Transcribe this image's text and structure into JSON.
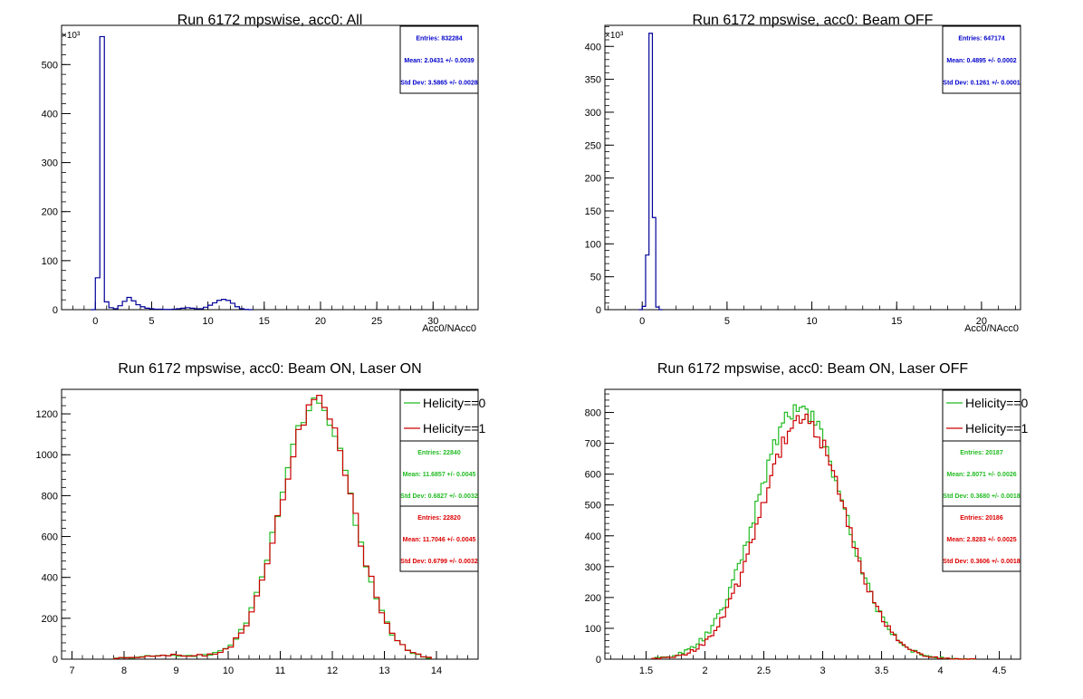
{
  "canvas": {
    "background": "#ffffff"
  },
  "chart_data": [
    {
      "type": "bar",
      "title": "Run 6172 mpswise, acc0: All",
      "xlabel": "Acc0/NAcc0",
      "ylabel": "",
      "multiplier": "×10³",
      "xlim": [
        -3,
        34
      ],
      "ylim": [
        0,
        580
      ],
      "x_ticks": [
        0,
        5,
        10,
        15,
        20,
        25,
        30
      ],
      "y_ticks": [
        0,
        100,
        200,
        300,
        400,
        500
      ],
      "bin_width": 0.4,
      "series": [
        {
          "color": "#000099",
          "bins": [
            [
              -0.4,
              0
            ],
            [
              0,
              65
            ],
            [
              0.4,
              557
            ],
            [
              0.8,
              16
            ],
            [
              1.2,
              4
            ],
            [
              1.6,
              2
            ],
            [
              2,
              8
            ],
            [
              2.4,
              17
            ],
            [
              2.8,
              25
            ],
            [
              3.2,
              18
            ],
            [
              3.6,
              10
            ],
            [
              4,
              6
            ],
            [
              4.4,
              3
            ],
            [
              4.8,
              2
            ],
            [
              5.2,
              1
            ],
            [
              5.6,
              1
            ],
            [
              6,
              0.5
            ],
            [
              6.4,
              0.5
            ],
            [
              6.8,
              1
            ],
            [
              7.2,
              2
            ],
            [
              7.6,
              3
            ],
            [
              8,
              4
            ],
            [
              8.4,
              3
            ],
            [
              8.8,
              2
            ],
            [
              9.2,
              2
            ],
            [
              9.6,
              5
            ],
            [
              10,
              9
            ],
            [
              10.4,
              14
            ],
            [
              10.8,
              19
            ],
            [
              11.2,
              21
            ],
            [
              11.6,
              19
            ],
            [
              12,
              13
            ],
            [
              12.4,
              6
            ],
            [
              12.8,
              2
            ],
            [
              13.2,
              0.5
            ],
            [
              13.6,
              0
            ]
          ]
        }
      ],
      "stats": [
        {
          "entries_label": "Entries: 832284",
          "mean_label": "Mean: 2.0431 +/- 0.0039",
          "std_label": "Std Dev: 3.5865 +/- 0.0028",
          "color": "#0000cc"
        }
      ]
    },
    {
      "type": "bar",
      "title": "Run 6172 mpswise, acc0: Beam OFF",
      "xlabel": "Acc0/NAcc0",
      "ylabel": "",
      "multiplier": "×10³",
      "xlim": [
        -2.2,
        22.3
      ],
      "ylim": [
        0,
        432
      ],
      "x_ticks": [
        0,
        5,
        10,
        15,
        20
      ],
      "y_ticks": [
        0,
        50,
        100,
        150,
        200,
        250,
        300,
        350,
        400
      ],
      "bin_width": 0.2,
      "series": [
        {
          "color": "#000099",
          "bins": [
            [
              -0.2,
              0
            ],
            [
              0,
              5
            ],
            [
              0.2,
              83
            ],
            [
              0.4,
              420
            ],
            [
              0.6,
              140
            ],
            [
              0.8,
              4
            ],
            [
              1,
              0
            ]
          ]
        }
      ],
      "stats": [
        {
          "entries_label": "Entries: 647174",
          "mean_label": "Mean: 0.4895 +/- 0.0002",
          "std_label": "Std Dev: 0.1261 +/- 0.0001",
          "color": "#0000cc"
        }
      ]
    },
    {
      "type": "line",
      "title": "Run 6172 mpswise, acc0: Beam ON, Laser ON",
      "xlabel": "",
      "ylabel": "",
      "xlim": [
        6.8,
        14.8
      ],
      "ylim": [
        0,
        1320
      ],
      "x_ticks": [
        7,
        8,
        9,
        10,
        11,
        12,
        13,
        14
      ],
      "y_ticks": [
        0,
        200,
        400,
        600,
        800,
        1000,
        1200
      ],
      "bin_width": 0.1,
      "series": [
        {
          "name": "Helicity==0",
          "color": "#22bb22",
          "mean": 11.6857,
          "sigma": 0.6827,
          "peak": 1265,
          "bg_center": 8.9,
          "bg_sigma": 0.6,
          "bg_amp": 18,
          "x_start": 7.8,
          "x_end": 13.9
        },
        {
          "name": "Helicity==1",
          "color": "#cc0000",
          "mean": 11.7046,
          "sigma": 0.6799,
          "peak": 1255,
          "bg_center": 8.9,
          "bg_sigma": 0.6,
          "bg_amp": 20,
          "x_start": 7.8,
          "x_end": 13.9
        }
      ],
      "stats": [
        {
          "entries_label": "Entries: 22840",
          "mean_label": "Mean: 11.6857 +/- 0.0045",
          "std_label": "Std Dev: 0.6827 +/- 0.0032",
          "color": "#22bb22"
        },
        {
          "entries_label": "Entries: 22820",
          "mean_label": "Mean: 11.7046 +/- 0.0045",
          "std_label": "Std Dev: 0.6799 +/- 0.0032",
          "color": "#dd0000"
        }
      ]
    },
    {
      "type": "line",
      "title": "Run 6172 mpswise, acc0: Beam ON, Laser OFF",
      "xlabel": "",
      "ylabel": "",
      "xlim": [
        1.15,
        4.68
      ],
      "ylim": [
        0,
        875
      ],
      "x_ticks": [
        1.5,
        2,
        2.5,
        3,
        3.5,
        4,
        4.5
      ],
      "y_ticks": [
        0,
        100,
        200,
        300,
        400,
        500,
        600,
        700,
        800
      ],
      "bin_width": 0.025,
      "series": [
        {
          "name": "Helicity==0",
          "color": "#22bb22",
          "mean": 2.8071,
          "sigma": 0.368,
          "peak": 820,
          "bg_center": 0,
          "bg_sigma": 1,
          "bg_amp": 0,
          "x_start": 1.55,
          "x_end": 4.3
        },
        {
          "name": "Helicity==1",
          "color": "#cc0000",
          "mean": 2.8283,
          "sigma": 0.3606,
          "peak": 780,
          "bg_center": 0,
          "bg_sigma": 1,
          "bg_amp": 0,
          "x_start": 1.55,
          "x_end": 4.3
        }
      ],
      "stats": [
        {
          "entries_label": "Entries: 20187",
          "mean_label": "Mean: 2.8071 +/- 0.0026",
          "std_label": "Std Dev: 0.3680 +/- 0.0018",
          "color": "#22bb22"
        },
        {
          "entries_label": "Entries: 20186",
          "mean_label": "Mean: 2.8283 +/- 0.0025",
          "std_label": "Std Dev: 0.3606 +/- 0.0018",
          "color": "#dd0000"
        }
      ]
    }
  ]
}
